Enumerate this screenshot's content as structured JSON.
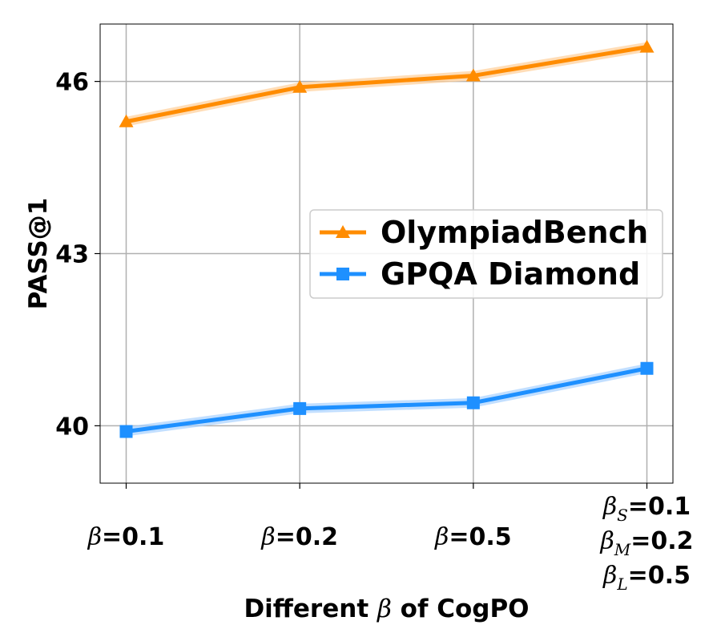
{
  "chart_data": {
    "type": "line",
    "xlabel": "Different β of CogPO",
    "xlabel_parts": {
      "prefix": "Different ",
      "symbol": "β",
      "suffix": " of CogPO"
    },
    "ylabel": "PASS@1",
    "ylim": [
      39,
      47
    ],
    "yticks": [
      40,
      43,
      46
    ],
    "ytick_labels": [
      "40",
      "43",
      "46"
    ],
    "grid": true,
    "legend_position": "center-right",
    "x": [
      0,
      1,
      2,
      3
    ],
    "xlim": [
      -0.15,
      3.15
    ],
    "categories": [
      {
        "lines": [
          {
            "sym": "β",
            "sub": "",
            "val": "=0.1"
          }
        ]
      },
      {
        "lines": [
          {
            "sym": "β",
            "sub": "",
            "val": "=0.2"
          }
        ]
      },
      {
        "lines": [
          {
            "sym": "β",
            "sub": "",
            "val": "=0.5"
          }
        ]
      },
      {
        "lines": [
          {
            "sym": "β",
            "sub": "S",
            "val": "=0.1"
          },
          {
            "sym": "β",
            "sub": "M",
            "val": "=0.2"
          },
          {
            "sym": "β",
            "sub": "L",
            "val": "=0.5"
          }
        ]
      }
    ],
    "series": [
      {
        "name": "OlympiadBench",
        "values": [
          45.3,
          45.9,
          46.1,
          46.6
        ],
        "color": "#ff8c00",
        "band_color": "#ffcf99",
        "marker": "triangle"
      },
      {
        "name": "GPQA Diamond",
        "values": [
          39.9,
          40.3,
          40.4,
          41.0
        ],
        "color": "#1e90ff",
        "band_color": "#a8d2ff",
        "marker": "square"
      }
    ]
  }
}
